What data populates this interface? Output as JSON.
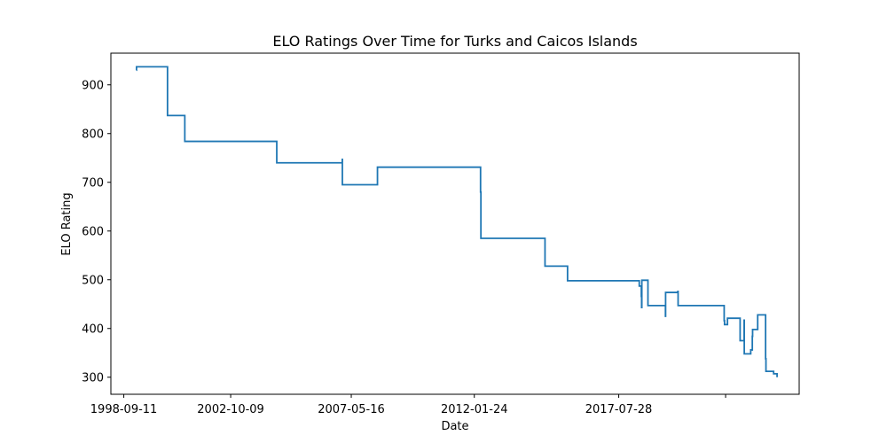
{
  "chart_data": {
    "type": "line",
    "title": "ELO Ratings Over Time for Turks and Caicos Islands",
    "xlabel": "Date",
    "ylabel": "ELO Rating",
    "xlim": [
      "1998-03-15",
      "2024-06-15"
    ],
    "ylim": [
      265,
      965
    ],
    "x_ticks": [
      "1998-09-11",
      "2002-10-09",
      "2007-05-16",
      "2012-01-24",
      "2017-07-28",
      ""
    ],
    "y_ticks": [
      300,
      400,
      500,
      600,
      700,
      800,
      900
    ],
    "grid": false,
    "line_color": "#1f77b4",
    "series": [
      {
        "x": [
          "1999-03-05",
          "1999-03-07",
          "2000-05-10",
          "2000-05-12",
          "2001-01-08",
          "2004-07-12",
          "2007-01-10",
          "2007-01-11",
          "2007-01-12",
          "2008-05-15",
          "2012-04-20",
          "2012-04-25",
          "2014-10-05",
          "2015-08-15",
          "2018-01-15",
          "2018-05-10",
          "2018-06-08",
          "2018-06-12",
          "2018-06-15",
          "2018-09-08",
          "2019-03-15",
          "2019-05-10",
          "2019-05-12",
          "2019-10-30",
          "2019-11-02",
          "2021-07-20",
          "2021-08-05",
          "2021-08-10",
          "2021-09-15",
          "2021-09-20",
          "2022-03-15",
          "2022-05-10",
          "2022-05-12",
          "2022-08-08",
          "2022-08-10",
          "2022-09-01",
          "2022-09-05",
          "2022-11-15",
          "2023-03-01",
          "2023-03-05",
          "2023-03-10",
          "2023-04-01",
          "2023-06-20",
          "2023-06-25",
          "2023-08-12"
        ],
        "y": [
          930,
          937,
          937,
          837,
          784,
          740,
          740,
          747,
          695,
          731,
          680,
          585,
          528,
          498,
          498,
          487,
          466,
          443,
          499,
          447,
          447,
          425,
          474,
          476,
          447,
          447,
          416,
          408,
          408,
          421,
          375,
          417,
          348,
          348,
          356,
          384,
          398,
          428,
          428,
          338,
          312,
          312,
          312,
          307,
          300
        ]
      }
    ]
  }
}
